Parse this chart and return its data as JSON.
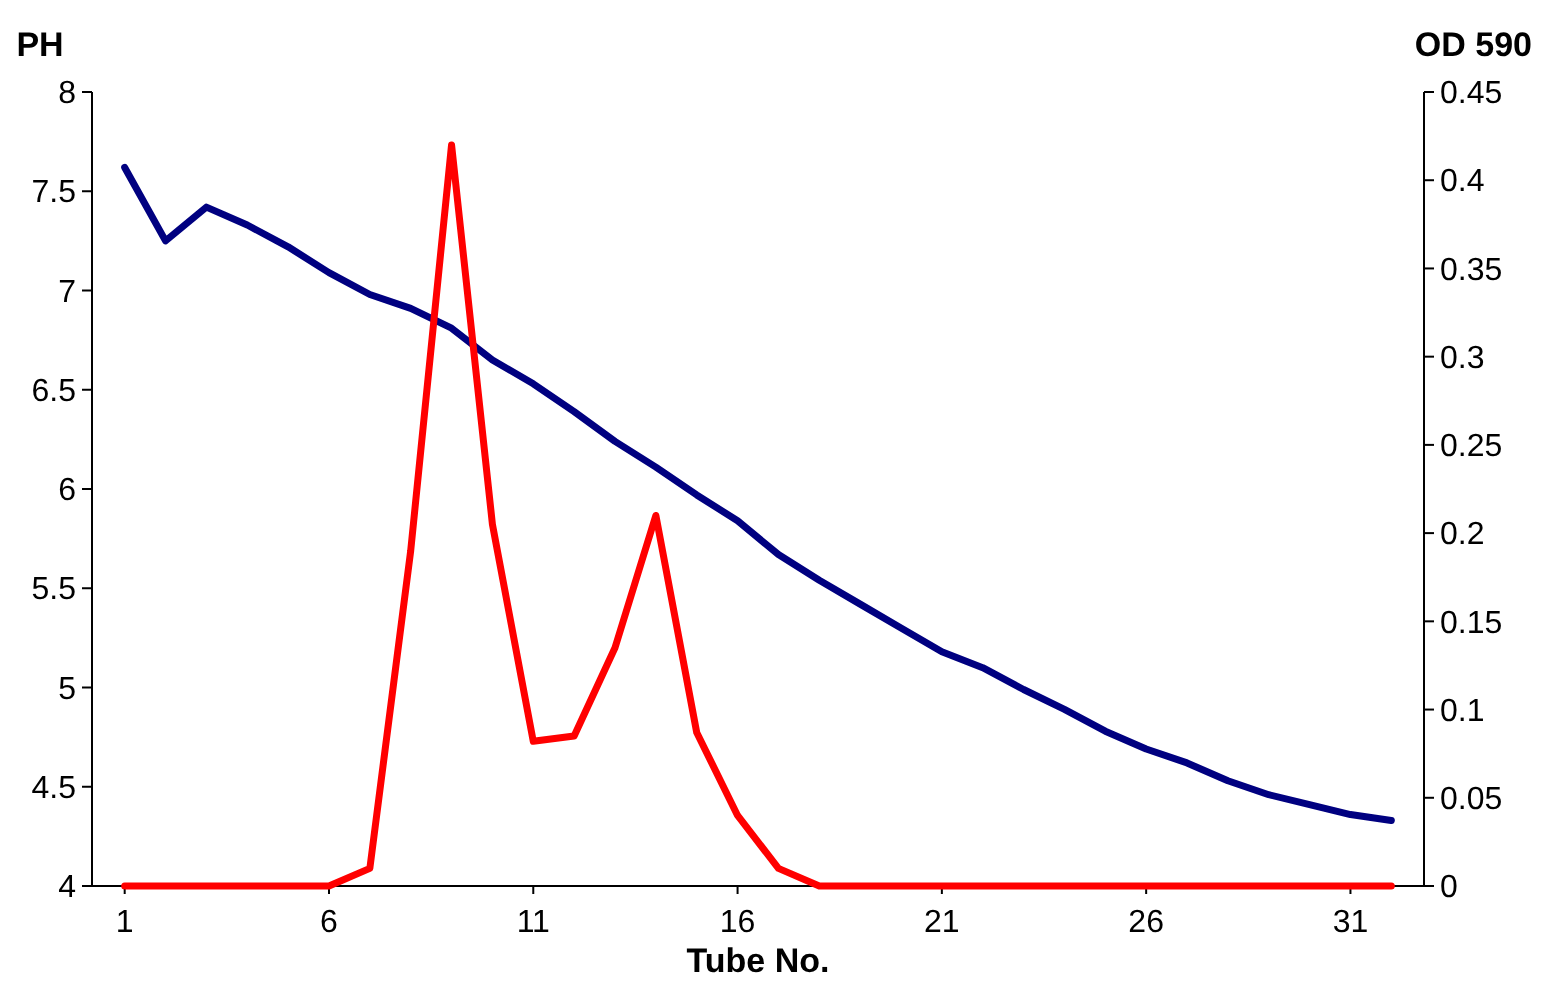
{
  "chart_data": {
    "type": "line",
    "xlabel": "Tube No.",
    "ylabel": "PH",
    "y2label": "OD 590",
    "x": [
      1,
      2,
      3,
      4,
      5,
      6,
      7,
      8,
      9,
      10,
      11,
      12,
      13,
      14,
      15,
      16,
      17,
      18,
      19,
      20,
      21,
      22,
      23,
      24,
      25,
      26,
      27,
      28,
      29,
      30,
      31,
      32
    ],
    "xlim": [
      0.2,
      32.8
    ],
    "xticks": [
      1,
      6,
      11,
      16,
      21,
      26,
      31
    ],
    "series": [
      {
        "color": "#000080",
        "values": [
          7.62,
          7.25,
          7.42,
          7.33,
          7.22,
          7.09,
          6.98,
          6.91,
          6.81,
          6.65,
          6.53,
          6.39,
          6.24,
          6.11,
          5.97,
          5.84,
          5.67,
          5.54,
          5.42,
          5.3,
          5.18,
          5.1,
          4.99,
          4.89,
          4.78,
          4.69,
          4.62,
          4.53,
          4.46,
          4.41,
          4.36,
          4.33
        ]
      },
      {
        "color": "#ff0000",
        "axis": "y2",
        "values": [
          0,
          0,
          0,
          0,
          0,
          0,
          0.01,
          0.19,
          0.42,
          0.205,
          0.082,
          0.085,
          0.135,
          0.21,
          0.087,
          0.04,
          0.01,
          0,
          0,
          0,
          0,
          0,
          0,
          0,
          0,
          0,
          0,
          0,
          0,
          0,
          0,
          0
        ]
      }
    ],
    "ylim": [
      4,
      8
    ],
    "yticks": [
      4,
      4.5,
      5,
      5.5,
      6,
      6.5,
      7,
      7.5,
      8
    ],
    "y2lim": [
      0,
      0.45
    ],
    "y2ticks": [
      0,
      0.05,
      0.1,
      0.15,
      0.2,
      0.25,
      0.3,
      0.35,
      0.4,
      0.45
    ],
    "grid": false,
    "marker": "none",
    "line_style": "solid"
  }
}
